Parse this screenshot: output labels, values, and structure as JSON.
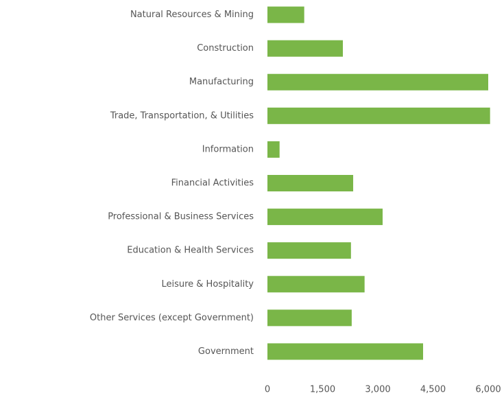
{
  "chart_data": {
    "type": "bar",
    "orientation": "horizontal",
    "categories": [
      "Natural Resources & Mining",
      "Construction",
      "Manufacturing",
      "Trade, Transportation, & Utilities",
      "Information",
      "Financial Activities",
      "Professional & Business Services",
      "Education & Health Services",
      "Leisure & Hospitality",
      "Other Services (except Government)",
      "Government"
    ],
    "values": [
      1000,
      2050,
      6000,
      6050,
      330,
      2330,
      3130,
      2270,
      2640,
      2290,
      4230
    ],
    "color": "#7ab648",
    "xlim": [
      0,
      6100
    ],
    "xticks": [
      0,
      {
        "value": 1500,
        "label": "1,500"
      },
      {
        "value": 3000,
        "label": "3,000"
      },
      {
        "value": 4500,
        "label": "4,500"
      },
      {
        "value": 6000,
        "label": "6,000"
      }
    ]
  }
}
